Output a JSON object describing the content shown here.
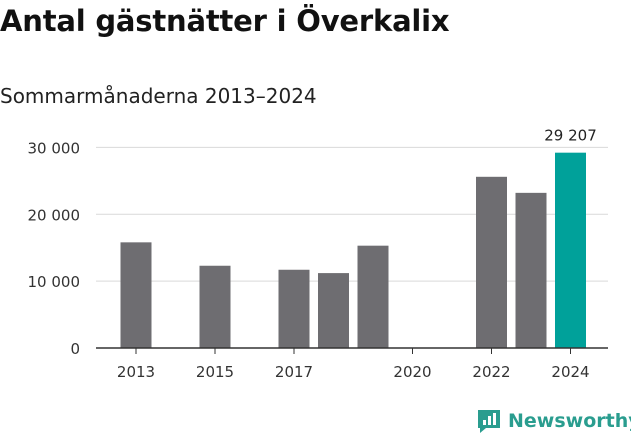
{
  "header": {
    "title": "Antal gästnätter i Överkalix",
    "subtitle": "Sommarmånaderna 2013–2024"
  },
  "brand": {
    "name": "Newsworthy",
    "icon": "newsworthy-logo-icon",
    "color": "#2a9d8f"
  },
  "chart_data": {
    "type": "bar",
    "categories": [
      "2013",
      "2014",
      "2015",
      "2016",
      "2017",
      "2018",
      "2019",
      "2020",
      "2021",
      "2022",
      "2023",
      "2024"
    ],
    "values": [
      15800,
      null,
      12300,
      null,
      11700,
      11200,
      15300,
      null,
      null,
      25600,
      23200,
      29207
    ],
    "tick_labels_x": [
      "2013",
      "2015",
      "2017",
      "2020",
      "2022",
      "2024"
    ],
    "yticks": [
      0,
      10000,
      20000,
      30000
    ],
    "ytick_labels": [
      "0",
      "10 000",
      "20 000",
      "30 000"
    ],
    "ylim": [
      0,
      32000
    ],
    "highlight": {
      "category": "2024",
      "label": "29 207",
      "color": "#00a19a"
    },
    "bar_color": "#6e6d71",
    "grid": true
  }
}
